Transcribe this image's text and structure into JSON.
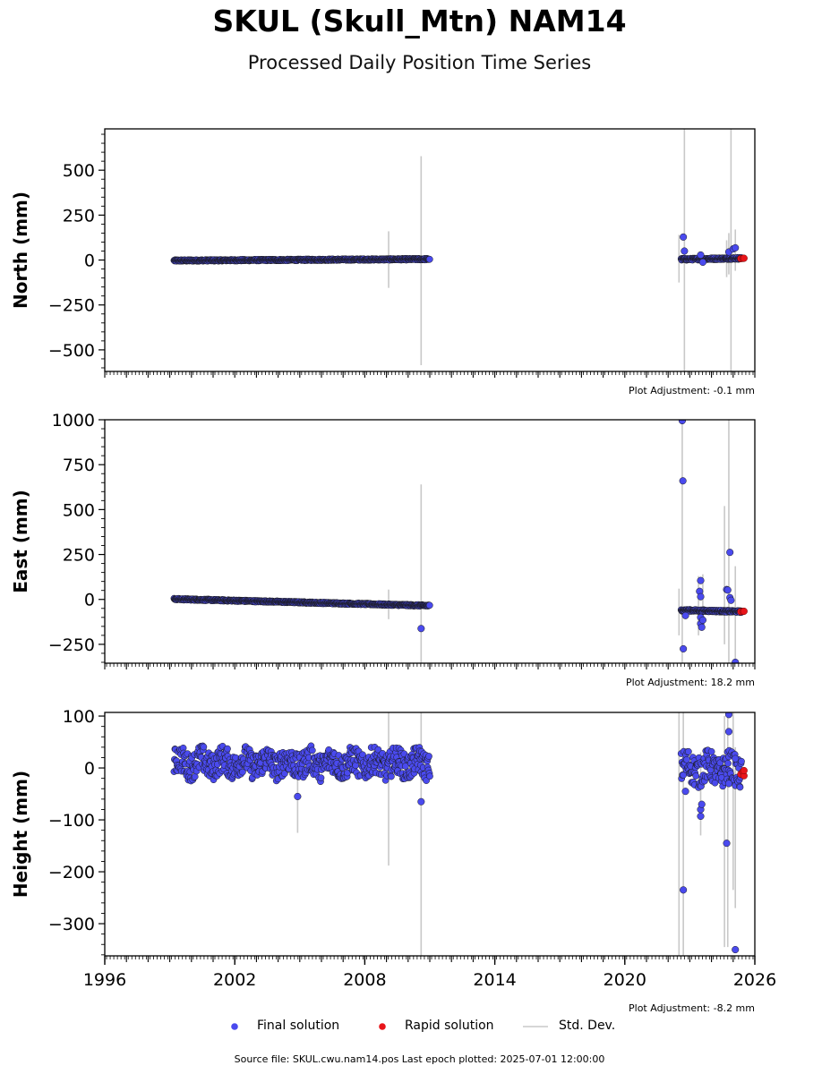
{
  "header": {
    "title": "SKUL (Skull_Mtn) NAM14",
    "subtitle": "Processed Daily Position Time Series"
  },
  "footer": {
    "source": "Source file: SKUL.cwu.nam14.pos  Last epoch plotted: 2025-07-01 12:00:00"
  },
  "legend": {
    "final": "Final solution",
    "rapid": "Rapid solution",
    "stddev": "Std. Dev."
  },
  "colors": {
    "final": "#4a4aee",
    "rapid": "#e8141a",
    "stddev": "#c8c8c8",
    "outline": "#1a1a1a"
  },
  "chart_data": [
    {
      "type": "scatter",
      "ylabel": "North (mm)",
      "adjustment": "Plot Adjustment: -0.1 mm",
      "xlim": [
        1996,
        2026
      ],
      "ylim": [
        -620,
        730
      ],
      "yticks": [
        500,
        250,
        0,
        -250,
        -500
      ],
      "ytick_labels": [
        "500",
        "250",
        "0",
        "−250",
        "−500"
      ],
      "segments": [
        {
          "t0": 1999.2,
          "t1": 2011.0,
          "y0": -3,
          "y1": 5,
          "spread": 4
        },
        {
          "t0": 2022.6,
          "t1": 2025.4,
          "y0": 4,
          "y1": 10,
          "spread": 5
        }
      ],
      "outliers": [
        {
          "t": 2022.7,
          "y": 128
        },
        {
          "t": 2022.75,
          "y": 50
        },
        {
          "t": 2023.5,
          "y": 28
        },
        {
          "t": 2023.6,
          "y": -12
        },
        {
          "t": 2024.8,
          "y": 45
        },
        {
          "t": 2025.0,
          "y": 62
        },
        {
          "t": 2025.1,
          "y": 68
        }
      ],
      "rapid": [
        {
          "t": 2025.35,
          "y": 8
        },
        {
          "t": 2025.45,
          "y": 9
        },
        {
          "t": 2025.5,
          "y": 10
        }
      ],
      "stddev_bars": [
        {
          "t": 2009.1,
          "lo": -155,
          "hi": 160
        },
        {
          "t": 2010.6,
          "lo": -585,
          "hi": 578
        },
        {
          "t": 2022.5,
          "lo": -125,
          "hi": 140
        },
        {
          "t": 2022.75,
          "lo": -620,
          "hi": 730
        },
        {
          "t": 2024.7,
          "lo": -95,
          "hi": 110
        },
        {
          "t": 2024.8,
          "lo": -80,
          "hi": 150
        },
        {
          "t": 2024.9,
          "lo": -620,
          "hi": 730
        },
        {
          "t": 2025.1,
          "lo": -60,
          "hi": 170
        }
      ]
    },
    {
      "type": "scatter",
      "ylabel": "East (mm)",
      "adjustment": "Plot Adjustment: 18.2 mm",
      "xlim": [
        1996,
        2026
      ],
      "ylim": [
        -355,
        1000
      ],
      "yticks": [
        1000,
        750,
        500,
        250,
        0,
        -250
      ],
      "ytick_labels": [
        "1000",
        "750",
        "500",
        "250",
        "0",
        "−250"
      ],
      "segments": [
        {
          "t0": 1999.2,
          "t1": 2011.0,
          "y0": 2,
          "y1": -35,
          "spread": 4
        },
        {
          "t0": 2022.6,
          "t1": 2025.4,
          "y0": -60,
          "y1": -68,
          "spread": 5
        }
      ],
      "outliers": [
        {
          "t": 2010.6,
          "y": -162
        },
        {
          "t": 2022.65,
          "y": 995
        },
        {
          "t": 2022.68,
          "y": 660
        },
        {
          "t": 2022.7,
          "y": -275
        },
        {
          "t": 2022.8,
          "y": -90
        },
        {
          "t": 2023.5,
          "y": 105
        },
        {
          "t": 2023.45,
          "y": 45
        },
        {
          "t": 2023.5,
          "y": 15
        },
        {
          "t": 2023.5,
          "y": -100
        },
        {
          "t": 2023.5,
          "y": -135
        },
        {
          "t": 2023.55,
          "y": -155
        },
        {
          "t": 2023.6,
          "y": -115
        },
        {
          "t": 2024.7,
          "y": 55
        },
        {
          "t": 2024.75,
          "y": 52
        },
        {
          "t": 2024.85,
          "y": 262
        },
        {
          "t": 2024.85,
          "y": 10
        },
        {
          "t": 2024.9,
          "y": -5
        },
        {
          "t": 2025.1,
          "y": -350
        }
      ],
      "rapid": [
        {
          "t": 2025.35,
          "y": -68
        },
        {
          "t": 2025.45,
          "y": -67
        },
        {
          "t": 2025.5,
          "y": -66
        }
      ],
      "stddev_bars": [
        {
          "t": 2009.1,
          "lo": -110,
          "hi": 55
        },
        {
          "t": 2010.6,
          "lo": -355,
          "hi": 640
        },
        {
          "t": 2022.5,
          "lo": -200,
          "hi": 60
        },
        {
          "t": 2022.65,
          "lo": -355,
          "hi": 1000
        },
        {
          "t": 2023.4,
          "lo": -200,
          "hi": 130
        },
        {
          "t": 2023.6,
          "lo": -160,
          "hi": 140
        },
        {
          "t": 2024.6,
          "lo": -250,
          "hi": 520
        },
        {
          "t": 2024.8,
          "lo": -355,
          "hi": 1000
        },
        {
          "t": 2025.1,
          "lo": -355,
          "hi": 185
        }
      ]
    },
    {
      "type": "scatter",
      "ylabel": "Height (mm)",
      "adjustment": "Plot Adjustment: -8.2 mm",
      "xlim": [
        1996,
        2026
      ],
      "ylim": [
        -362,
        107
      ],
      "yticks": [
        100,
        0,
        -100,
        -200,
        -300
      ],
      "ytick_labels": [
        "100",
        "0",
        "−100",
        "−200",
        "−300"
      ],
      "xticks": [
        1996,
        2002,
        2008,
        2014,
        2020,
        2026
      ],
      "xtick_labels": [
        "1996",
        "2002",
        "2008",
        "2014",
        "2020",
        "2026"
      ],
      "segments": [
        {
          "t0": 1999.2,
          "t1": 2011.0,
          "y0": 10,
          "y1": 8,
          "spread": 26
        },
        {
          "t0": 2022.6,
          "t1": 2025.4,
          "y0": 0,
          "y1": -5,
          "spread": 30
        }
      ],
      "outliers": [
        {
          "t": 2004.9,
          "y": -55
        },
        {
          "t": 2010.6,
          "y": -65
        },
        {
          "t": 2022.7,
          "y": -235
        },
        {
          "t": 2022.8,
          "y": -45
        },
        {
          "t": 2023.5,
          "y": -93
        },
        {
          "t": 2023.5,
          "y": -80
        },
        {
          "t": 2023.55,
          "y": -70
        },
        {
          "t": 2024.7,
          "y": -145
        },
        {
          "t": 2024.8,
          "y": 103
        },
        {
          "t": 2024.8,
          "y": 70
        },
        {
          "t": 2024.8,
          "y": -30
        },
        {
          "t": 2025.1,
          "y": -350
        },
        {
          "t": 2025.1,
          "y": 18
        }
      ],
      "rapid": [
        {
          "t": 2025.35,
          "y": -12
        },
        {
          "t": 2025.45,
          "y": -7
        },
        {
          "t": 2025.5,
          "y": -15
        },
        {
          "t": 2025.5,
          "y": -5
        }
      ],
      "stddev_bars": [
        {
          "t": 2004.9,
          "lo": -125,
          "hi": 10
        },
        {
          "t": 2009.1,
          "lo": -188,
          "hi": 107
        },
        {
          "t": 2010.6,
          "lo": -362,
          "hi": 107
        },
        {
          "t": 2022.5,
          "lo": -362,
          "hi": 107
        },
        {
          "t": 2022.7,
          "lo": -362,
          "hi": 107
        },
        {
          "t": 2023.5,
          "lo": -130,
          "hi": 30
        },
        {
          "t": 2024.6,
          "lo": -345,
          "hi": 100
        },
        {
          "t": 2024.75,
          "lo": -345,
          "hi": 107
        },
        {
          "t": 2025.0,
          "lo": -235,
          "hi": 107
        },
        {
          "t": 2025.1,
          "lo": -270,
          "hi": 40
        }
      ]
    }
  ]
}
